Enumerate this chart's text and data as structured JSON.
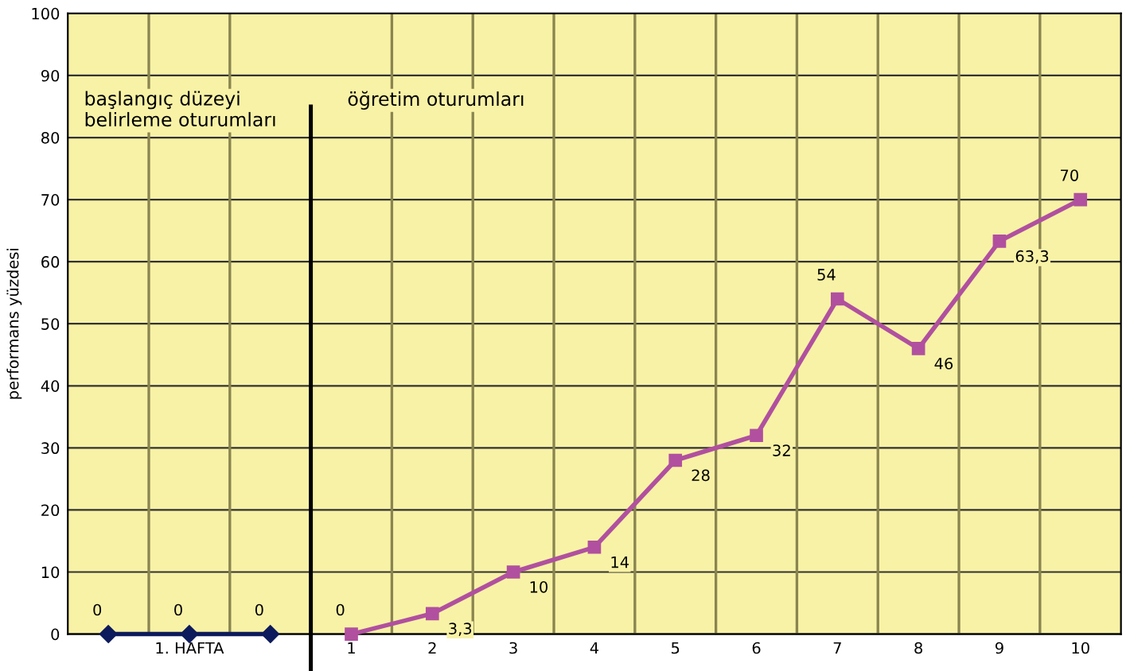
{
  "chart_data": {
    "type": "line",
    "ylabel": "performans yüzdesi",
    "series": [
      {
        "color": "#0d1a5c",
        "marker": "diamond",
        "x": [
          -2,
          -1,
          0
        ],
        "values": [
          0,
          0,
          0
        ],
        "value_labels": [
          "0",
          "0",
          "0"
        ]
      },
      {
        "color": "#b0509f",
        "marker": "square",
        "x": [
          1,
          2,
          3,
          4,
          5,
          6,
          7,
          8,
          9,
          10
        ],
        "values": [
          0,
          3.3,
          10,
          14,
          28,
          32,
          54,
          46,
          63.3,
          70
        ],
        "value_labels": [
          "0",
          "3,3",
          "10",
          "14",
          "28",
          "32",
          "54",
          "46",
          "63,3",
          "70"
        ]
      }
    ],
    "xlim": [
      -2.5,
      10.5
    ],
    "xticks": [
      {
        "value": -1,
        "label": "1. HAFTA"
      },
      1,
      2,
      3,
      4,
      5,
      6,
      7,
      8,
      9,
      10,
      {
        "value": -1.5,
        "label": null
      },
      {
        "value": -0.5,
        "label": null
      },
      {
        "value": 1.5,
        "label": null
      },
      {
        "value": 2.5,
        "label": null
      },
      {
        "value": 3.5,
        "label": null
      },
      {
        "value": 4.5,
        "label": null
      },
      {
        "value": 5.5,
        "label": null
      },
      {
        "value": 6.5,
        "label": null
      },
      {
        "value": 7.5,
        "label": null
      },
      {
        "value": 8.5,
        "label": null
      },
      {
        "value": 9.5,
        "label": null
      }
    ],
    "ylim": [
      0,
      100
    ],
    "yticks": [
      0,
      10,
      20,
      30,
      40,
      50,
      60,
      70,
      80,
      90,
      100
    ],
    "grid": true,
    "ref_lines": [
      {
        "axis": "x",
        "value": 0.5,
        "color": "#000000"
      }
    ],
    "annotations": [
      "başlangıç düzeyi\nbelirleme oturumları",
      "öğretim oturumları"
    ]
  }
}
